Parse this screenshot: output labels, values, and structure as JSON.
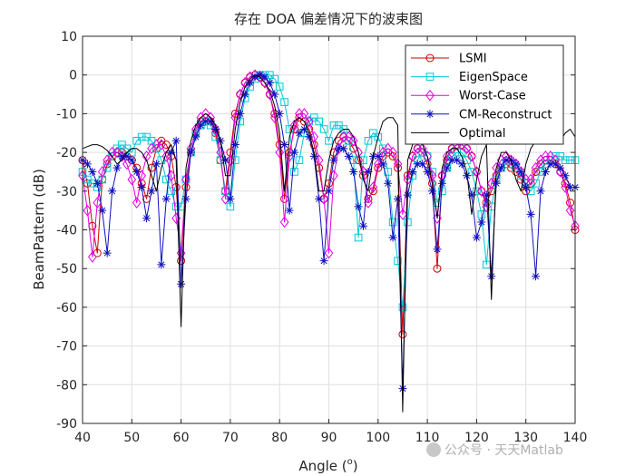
{
  "chart_data": {
    "type": "line",
    "title": "存在 DOA 偏差情况下的波束图",
    "xlabel": "Angle (",
    "xlabel_sup": "o",
    "xlabel_end": ")",
    "ylabel": "BeamPattern (dB)",
    "xlim": [
      40,
      140
    ],
    "ylim": [
      -90,
      10
    ],
    "xticks": [
      40,
      50,
      60,
      70,
      80,
      90,
      100,
      110,
      120,
      130,
      140
    ],
    "yticks": [
      10,
      0,
      -10,
      -20,
      -30,
      -40,
      -50,
      -60,
      -70,
      -80,
      -90
    ],
    "grid": true,
    "legend_position": "top-right",
    "x": [
      40,
      41,
      42,
      43,
      44,
      45,
      46,
      47,
      48,
      49,
      50,
      51,
      52,
      53,
      54,
      55,
      56,
      57,
      58,
      59,
      60,
      61,
      62,
      63,
      64,
      65,
      66,
      67,
      68,
      69,
      70,
      71,
      72,
      73,
      74,
      75,
      76,
      77,
      78,
      79,
      80,
      81,
      82,
      83,
      84,
      85,
      86,
      87,
      88,
      89,
      90,
      91,
      92,
      93,
      94,
      95,
      96,
      97,
      98,
      99,
      100,
      101,
      102,
      103,
      104,
      105,
      106,
      107,
      108,
      109,
      110,
      111,
      112,
      113,
      114,
      115,
      116,
      117,
      118,
      119,
      120,
      121,
      122,
      123,
      124,
      125,
      126,
      127,
      128,
      129,
      130,
      131,
      132,
      133,
      134,
      135,
      136,
      137,
      138,
      139,
      140
    ],
    "series": [
      {
        "name": "LSMI",
        "color": "#cc0000",
        "marker": "circle",
        "values": [
          -22,
          -28,
          -39,
          -46,
          -27,
          -23,
          -21,
          -20,
          -20,
          -21,
          -22,
          -24,
          -28,
          -32,
          -24,
          -19,
          -17,
          -18,
          -21,
          -29,
          -48,
          -29,
          -20,
          -15,
          -12,
          -11,
          -12,
          -15,
          -22,
          -30,
          -20,
          -10,
          -5,
          -2,
          -0.5,
          0,
          -0.5,
          -2,
          -5,
          -10,
          -18,
          -32,
          -20,
          -14,
          -11,
          -12,
          -14,
          -18,
          -24,
          -32,
          -28,
          -20,
          -17,
          -16,
          -17,
          -19,
          -22,
          -26,
          -32,
          -30,
          -24,
          -21,
          -20,
          -21,
          -24,
          -67,
          -26,
          -21,
          -19,
          -20,
          -23,
          -28,
          -50,
          -26,
          -22,
          -19,
          -18,
          -18,
          -19,
          -21,
          -25,
          -30,
          -33,
          -30,
          -26,
          -24,
          -23,
          -24,
          -25,
          -27,
          -30,
          -28,
          -25,
          -23,
          -22,
          -22,
          -23,
          -25,
          -28,
          -33,
          -40
        ]
      },
      {
        "name": "EigenSpace",
        "color": "#00c8d2",
        "marker": "square",
        "values": [
          -25,
          -27,
          -28,
          -29,
          -27,
          -24,
          -21,
          -19,
          -18,
          -19,
          -20,
          -17,
          -16,
          -16,
          -17,
          -19,
          -22,
          -27,
          -30,
          -34,
          -34,
          -27,
          -20,
          -15,
          -13,
          -12,
          -13,
          -16,
          -22,
          -30,
          -34,
          -22,
          -12,
          -6,
          -3,
          -1,
          0,
          0,
          0,
          -1,
          -3,
          -7,
          -14,
          -25,
          -22,
          -15,
          -12,
          -11,
          -12,
          -14,
          -17,
          -13,
          -13,
          -14,
          -17,
          -22,
          -42,
          -22,
          -17,
          -15,
          -16,
          -19,
          -25,
          -38,
          -48,
          -60,
          -38,
          -26,
          -22,
          -20,
          -21,
          -25,
          -33,
          -30,
          -24,
          -21,
          -20,
          -20,
          -22,
          -25,
          -30,
          -36,
          -49,
          -34,
          -27,
          -24,
          -23,
          -23,
          -24,
          -26,
          -28,
          -30,
          -28,
          -25,
          -23,
          -22,
          -21,
          -21,
          -22,
          -22,
          -22
        ]
      },
      {
        "name": "Worst-Case",
        "color": "#e600e6",
        "marker": "diamond",
        "values": [
          -26,
          -35,
          -47,
          -33,
          -25,
          -22,
          -20,
          -20,
          -21,
          -23,
          -27,
          -33,
          -26,
          -21,
          -19,
          -18,
          -18,
          -21,
          -26,
          -37,
          -46,
          -27,
          -19,
          -14,
          -11,
          -10,
          -11,
          -14,
          -20,
          -32,
          -22,
          -11,
          -5,
          -2,
          -0.5,
          0,
          -0.5,
          -2,
          -5,
          -11,
          -20,
          -38,
          -21,
          -13,
          -10,
          -10,
          -12,
          -16,
          -22,
          -32,
          -46,
          -26,
          -19,
          -16,
          -16,
          -17,
          -20,
          -25,
          -33,
          -29,
          -23,
          -20,
          -19,
          -20,
          -23,
          -36,
          -27,
          -21,
          -19,
          -19,
          -21,
          -26,
          -37,
          -26,
          -21,
          -19,
          -18,
          -18,
          -19,
          -21,
          -25,
          -30,
          -34,
          -28,
          -24,
          -22,
          -21,
          -22,
          -23,
          -25,
          -27,
          -27,
          -24,
          -22,
          -21,
          -21,
          -22,
          -25,
          -29,
          -35,
          -39
        ]
      },
      {
        "name": "CM-Reconstruct",
        "color": "#1010c0",
        "marker": "star",
        "values": [
          -22,
          -23,
          -25,
          -28,
          -35,
          -46,
          -30,
          -24,
          -21,
          -21,
          -22,
          -25,
          -29,
          -37,
          -30,
          -23,
          -49,
          -32,
          -20,
          -17,
          -54,
          -32,
          -20,
          -16,
          -13,
          -12,
          -12,
          -14,
          -17,
          -22,
          -32,
          -18,
          -10,
          -5,
          -2,
          -0.5,
          0,
          -0.5,
          -2,
          -5,
          -10,
          -18,
          -35,
          -20,
          -15,
          -14,
          -16,
          -21,
          -32,
          -48,
          -30,
          -22,
          -19,
          -19,
          -21,
          -25,
          -34,
          -39,
          -25,
          -21,
          -21,
          -23,
          -28,
          -42,
          -32,
          -81,
          -31,
          -25,
          -23,
          -23,
          -25,
          -30,
          -45,
          -28,
          -24,
          -22,
          -22,
          -23,
          -26,
          -31,
          -42,
          -38,
          -31,
          -52,
          -28,
          -24,
          -22,
          -22,
          -23,
          -25,
          -29,
          -36,
          -52,
          -30,
          -25,
          -23,
          -23,
          -24,
          -26,
          -29,
          -29
        ]
      },
      {
        "name": "Optimal",
        "color": "#000000",
        "marker": "none",
        "values": [
          -19,
          -18.5,
          -18,
          -18,
          -18.5,
          -19.5,
          -21,
          -23,
          -22,
          -20,
          -19,
          -19,
          -20,
          -22,
          -26,
          -30,
          -24,
          -20,
          -18,
          -22,
          -65,
          -24,
          -17,
          -13,
          -11,
          -10,
          -11,
          -13,
          -17,
          -26,
          -26,
          -14,
          -7,
          -3,
          -1,
          0,
          -0.5,
          -2,
          -4,
          -8,
          -15,
          -30,
          -16,
          -12,
          -11,
          -12,
          -15,
          -20,
          -30,
          -30,
          -22,
          -17,
          -15,
          -14,
          -14,
          -16,
          -20,
          -27,
          -30,
          -21,
          -16,
          -12,
          -11,
          -11,
          -13,
          -87,
          -22,
          -18,
          -17,
          -18,
          -21,
          -28,
          -37,
          -24,
          -20,
          -19,
          -19,
          -21,
          -25,
          -36,
          -27,
          -21,
          -18,
          -58,
          -24,
          -20,
          -20,
          -22,
          -27,
          -30,
          -23,
          -19,
          -17,
          -16,
          -16,
          -16,
          -17,
          -17,
          -15,
          -14,
          -16
        ]
      }
    ]
  },
  "watermark": "公众号 · 天天Matlab"
}
